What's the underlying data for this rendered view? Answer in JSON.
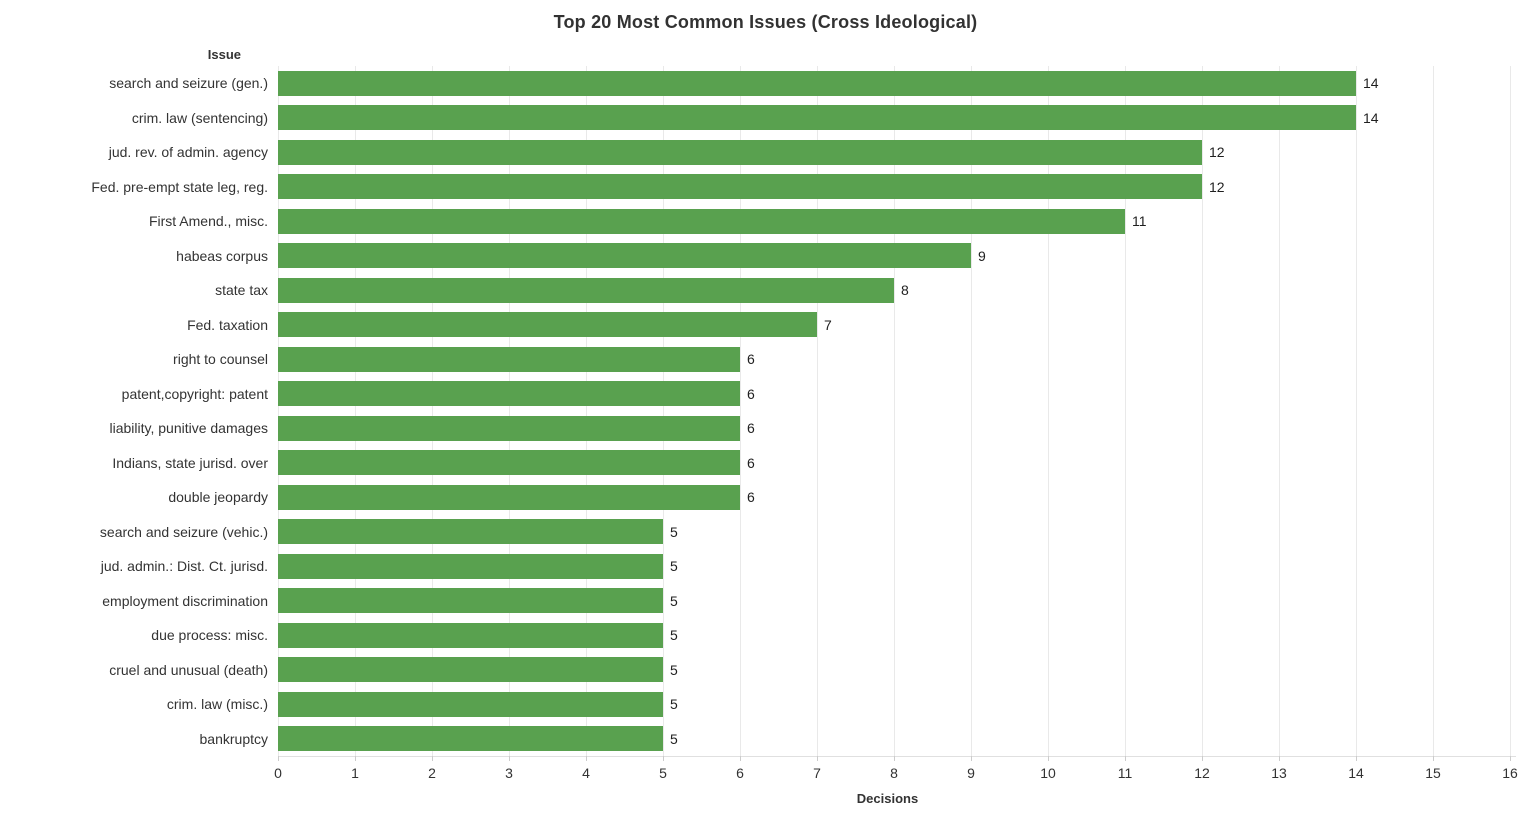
{
  "chart_data": {
    "type": "bar",
    "orientation": "horizontal",
    "title": "Top 20 Most Common Issues (Cross Ideological)",
    "xlabel": "Decisions",
    "ylabel": "Issue",
    "xlim": [
      0,
      16
    ],
    "x_ticks": [
      0,
      1,
      2,
      3,
      4,
      5,
      6,
      7,
      8,
      9,
      10,
      11,
      12,
      13,
      14,
      15,
      16
    ],
    "grid": true,
    "legend": false,
    "categories": [
      "search and seizure (gen.)",
      "crim. law (sentencing)",
      "jud. rev. of admin. agency",
      "Fed. pre-empt state leg, reg.",
      "First Amend., misc.",
      "habeas corpus",
      "state tax",
      "Fed. taxation",
      "right to counsel",
      "patent,copyright: patent",
      "liability, punitive damages",
      "Indians, state jurisd. over",
      "double jeopardy",
      "search and seizure (vehic.)",
      "jud. admin.: Dist. Ct. jurisd.",
      "employment discrimination",
      "due process: misc.",
      "cruel and unusual (death)",
      "crim. law (misc.)",
      "bankruptcy"
    ],
    "values": [
      14,
      14,
      12,
      12,
      11,
      9,
      8,
      7,
      6,
      6,
      6,
      6,
      6,
      5,
      5,
      5,
      5,
      5,
      5,
      5
    ]
  },
  "axes": {
    "row_header_label": "Issue",
    "x_axis_label": "Decisions",
    "row_header_sort_icon": "sort-descending",
    "x_axis_sort_icon": "sort-descending"
  },
  "colors": {
    "bar": "#59a14f",
    "title_text": "#323232",
    "label_text": "#333333",
    "value_text": "#1f1f1f",
    "gridline": "#e9e9e9",
    "axis_line": "#e0e0e0",
    "sort_icon": "#666666",
    "background": "#ffffff"
  }
}
